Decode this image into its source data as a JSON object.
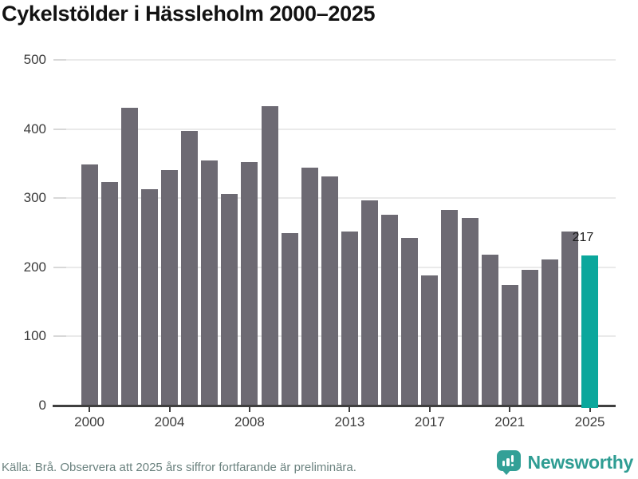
{
  "title": "Cykelstölder i Hässleholm 2000–2025",
  "chart_data": {
    "type": "bar",
    "categories": [
      2000,
      2001,
      2002,
      2003,
      2004,
      2005,
      2006,
      2007,
      2008,
      2009,
      2010,
      2011,
      2012,
      2013,
      2014,
      2015,
      2016,
      2017,
      2018,
      2019,
      2020,
      2021,
      2022,
      2023,
      2024,
      2025
    ],
    "values": [
      349,
      324,
      431,
      313,
      341,
      398,
      355,
      306,
      352,
      433,
      250,
      345,
      332,
      252,
      297,
      276,
      243,
      188,
      283,
      272,
      218,
      175,
      197,
      212,
      252,
      217
    ],
    "title": "Cykelstölder i Hässleholm 2000–2025",
    "xlabel": "",
    "ylabel": "",
    "ylim": [
      0,
      500
    ],
    "y_ticks": [
      0,
      100,
      200,
      300,
      400,
      500
    ],
    "x_tick_years": [
      2000,
      2004,
      2008,
      2013,
      2017,
      2021,
      2025
    ],
    "x_tick_labels": [
      "2000",
      "2004",
      "2008",
      "2013",
      "2017",
      "2021",
      "2025"
    ],
    "grid": true,
    "legend": "none",
    "highlight_year": 2025,
    "highlight_value_label": "217",
    "bar_color": "#6d6a73",
    "highlight_color": "#0ba79c"
  },
  "footer": {
    "source_text": "Källa: Brå. Observera att 2025 års siffror fortfarande är preliminära.",
    "brand_name": "Newsworthy"
  },
  "colors": {
    "background": "#ffffff",
    "title_text": "#121212",
    "axis_line": "#3f3f3f",
    "gridline": "#eaeaea",
    "tick_label": "#3c3c3c",
    "source_text": "#6b827f",
    "brand_teal": "#2f9d93"
  }
}
